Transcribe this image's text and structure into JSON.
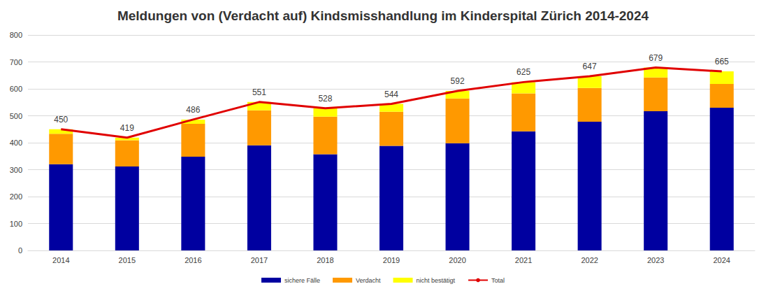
{
  "chart_data": {
    "type": "bar",
    "title": "Meldungen von (Verdacht auf) Kindsmisshandlung im Kinderspital Zürich 2014-2024",
    "categories": [
      "2014",
      "2015",
      "2016",
      "2017",
      "2018",
      "2019",
      "2020",
      "2021",
      "2022",
      "2023",
      "2024"
    ],
    "stacked": true,
    "grid": true,
    "legend": "bottom",
    "ylim": [
      0,
      800
    ],
    "yticks": [
      0,
      100,
      200,
      300,
      400,
      500,
      600,
      700,
      800
    ],
    "series": [
      {
        "name": "sichere Fälle",
        "type": "bar",
        "color": "#0000a0",
        "values": [
          320,
          312,
          348,
          390,
          357,
          388,
          398,
          442,
          478,
          517,
          530
        ]
      },
      {
        "name": "Verdacht",
        "type": "bar",
        "color": "#ff9900",
        "values": [
          113,
          97,
          122,
          130,
          140,
          127,
          166,
          141,
          125,
          125,
          88
        ]
      },
      {
        "name": "nicht bestätigt",
        "type": "bar",
        "color": "#ffff00",
        "values": [
          17,
          10,
          16,
          31,
          31,
          29,
          28,
          42,
          44,
          37,
          47
        ]
      },
      {
        "name": "Total",
        "type": "line",
        "color": "#e00000",
        "data_labels": true,
        "values": [
          450,
          419,
          486,
          551,
          528,
          544,
          592,
          625,
          647,
          679,
          665
        ]
      }
    ]
  }
}
